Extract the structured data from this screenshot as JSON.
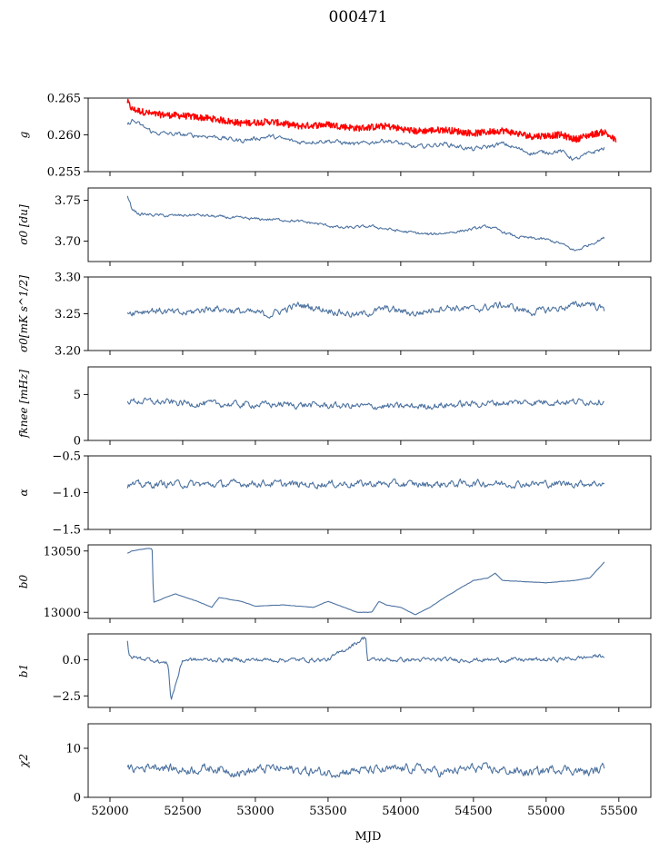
{
  "figure": {
    "title": "000471",
    "xlabel": "MJD",
    "x_ticks": [
      "52000",
      "52500",
      "53000",
      "53500",
      "54000",
      "54500",
      "55000",
      "55500"
    ]
  },
  "colors": {
    "series": "#4c72a0",
    "highlight": "#ff0000"
  },
  "chart_data": [
    {
      "type": "line",
      "id": "g",
      "ylabel": "g",
      "ylim": [
        0.255,
        0.265
      ],
      "xlim": [
        51850,
        55720
      ],
      "y_ticks": [
        "0.255",
        "0.260",
        "0.265"
      ],
      "series": [
        {
          "name": "g (red band)",
          "color": "#ff0000",
          "x": [
            52120,
            52150,
            52300,
            52500,
            52700,
            52900,
            53100,
            53300,
            53500,
            53700,
            53900,
            54100,
            54300,
            54500,
            54700,
            54900,
            55100,
            55200,
            55300,
            55400,
            55480
          ],
          "values": [
            0.2645,
            0.2635,
            0.2628,
            0.2626,
            0.2622,
            0.2616,
            0.2618,
            0.2612,
            0.2614,
            0.2609,
            0.2612,
            0.2605,
            0.2607,
            0.2602,
            0.2606,
            0.2598,
            0.26,
            0.2594,
            0.26,
            0.2604,
            0.2592
          ]
        },
        {
          "name": "g",
          "color": "#4c72a0",
          "x": [
            52120,
            52150,
            52300,
            52500,
            52700,
            52900,
            53100,
            53300,
            53500,
            53700,
            53900,
            54100,
            54300,
            54500,
            54700,
            54900,
            55100,
            55200,
            55300,
            55400
          ],
          "values": [
            0.2612,
            0.262,
            0.2603,
            0.26,
            0.2598,
            0.2592,
            0.2598,
            0.259,
            0.2592,
            0.2587,
            0.2593,
            0.2583,
            0.2588,
            0.258,
            0.2588,
            0.2575,
            0.2578,
            0.2566,
            0.2575,
            0.2582
          ]
        }
      ]
    },
    {
      "type": "line",
      "id": "sigma0_du",
      "ylabel": "σ0 [du]",
      "ylim": [
        3.675,
        3.765
      ],
      "xlim": [
        51850,
        55720
      ],
      "y_ticks": [
        "3.70",
        "3.75"
      ],
      "series": [
        {
          "name": "sigma0 [du]",
          "color": "#4c72a0",
          "x": [
            52120,
            52150,
            52200,
            52400,
            52600,
            52800,
            53000,
            53200,
            53400,
            53600,
            53800,
            54000,
            54200,
            54400,
            54600,
            54800,
            55000,
            55100,
            55200,
            55300,
            55400
          ],
          "values": [
            3.755,
            3.74,
            3.733,
            3.731,
            3.732,
            3.729,
            3.727,
            3.726,
            3.722,
            3.716,
            3.718,
            3.712,
            3.708,
            3.712,
            3.718,
            3.705,
            3.702,
            3.697,
            3.688,
            3.696,
            3.704
          ]
        }
      ]
    },
    {
      "type": "line",
      "id": "sigma0_mk",
      "ylabel": "σ0[mK s^1/2]",
      "ylim": [
        3.2,
        3.3
      ],
      "xlim": [
        51850,
        55720
      ],
      "y_ticks": [
        "3.20",
        "3.25",
        "3.30"
      ],
      "series": [
        {
          "name": "sigma0 [mK s^1/2]",
          "color": "#4c72a0",
          "x": [
            52120,
            52300,
            52500,
            52700,
            52900,
            53100,
            53300,
            53500,
            53700,
            53900,
            54100,
            54300,
            54500,
            54700,
            54900,
            55100,
            55300,
            55400
          ],
          "values": [
            3.252,
            3.255,
            3.25,
            3.258,
            3.253,
            3.249,
            3.262,
            3.255,
            3.248,
            3.257,
            3.25,
            3.259,
            3.256,
            3.262,
            3.252,
            3.258,
            3.265,
            3.255
          ]
        }
      ]
    },
    {
      "type": "line",
      "id": "fknee",
      "ylabel": "fknee [mHz]",
      "ylim": [
        0,
        8
      ],
      "xlim": [
        51850,
        55720
      ],
      "y_ticks": [
        "0",
        "5"
      ],
      "series": [
        {
          "name": "fknee [mHz]",
          "color": "#4c72a0",
          "x": [
            52120,
            52300,
            52600,
            52900,
            53200,
            53500,
            53800,
            54100,
            54400,
            54700,
            55000,
            55200,
            55400
          ],
          "values": [
            4.3,
            4.2,
            4.0,
            3.9,
            3.9,
            3.8,
            3.7,
            3.7,
            3.9,
            4.1,
            4.2,
            4.2,
            4.3
          ]
        }
      ]
    },
    {
      "type": "line",
      "id": "alpha",
      "ylabel": "α",
      "ylim": [
        -1.5,
        -0.5
      ],
      "xlim": [
        51850,
        55720
      ],
      "y_ticks": [
        "−1.5",
        "−1.0",
        "−0.5"
      ],
      "series": [
        {
          "name": "alpha",
          "color": "#4c72a0",
          "x": [
            52120,
            52400,
            52700,
            53000,
            53300,
            53600,
            53900,
            54200,
            54500,
            54800,
            55100,
            55400
          ],
          "values": [
            -0.9,
            -0.88,
            -0.89,
            -0.87,
            -0.89,
            -0.88,
            -0.88,
            -0.89,
            -0.87,
            -0.88,
            -0.88,
            -0.87
          ]
        }
      ]
    },
    {
      "type": "line",
      "id": "b0",
      "ylabel": "b0",
      "ylim": [
        12995,
        13055
      ],
      "xlim": [
        51850,
        55720
      ],
      "y_ticks": [
        "13000",
        "13050"
      ],
      "series": [
        {
          "name": "b0",
          "color": "#4c72a0",
          "x": [
            52120,
            52150,
            52250,
            52290,
            52300,
            52400,
            52450,
            52600,
            52700,
            52750,
            52900,
            53000,
            53200,
            53400,
            53500,
            53700,
            53800,
            53850,
            53900,
            54000,
            54100,
            54200,
            54300,
            54500,
            54600,
            54650,
            54700,
            55000,
            55200,
            55300,
            55400
          ],
          "values": [
            13048,
            13050,
            13052,
            13052,
            13008,
            13013,
            13015,
            13009,
            13004,
            13012,
            13009,
            13005,
            13006,
            13004,
            13009,
            13000,
            13000,
            13009,
            13006,
            13004,
            12998,
            13004,
            13012,
            13026,
            13028,
            13032,
            13026,
            13024,
            13026,
            13028,
            13041
          ]
        }
      ]
    },
    {
      "type": "line",
      "id": "b1",
      "ylabel": "b1",
      "ylim": [
        -3.3,
        1.8
      ],
      "xlim": [
        51850,
        55720
      ],
      "y_ticks": [
        "−2.5",
        "0.0"
      ],
      "series": [
        {
          "name": "b1",
          "color": "#4c72a0",
          "x": [
            52120,
            52130,
            52300,
            52400,
            52420,
            52500,
            53000,
            53500,
            53760,
            53770,
            54000,
            54500,
            55000,
            55200,
            55400
          ],
          "values": [
            1.2,
            0.2,
            0.0,
            -0.3,
            -2.8,
            0.0,
            0.0,
            0.0,
            1.6,
            0.0,
            0.0,
            0.0,
            0.0,
            0.1,
            0.3
          ]
        }
      ]
    },
    {
      "type": "line",
      "id": "chi2",
      "ylabel": "χ2",
      "ylim": [
        0,
        15
      ],
      "xlim": [
        51850,
        55720
      ],
      "y_ticks": [
        "0",
        "10"
      ],
      "series": [
        {
          "name": "chi^2",
          "color": "#4c72a0",
          "x": [
            52120,
            52300,
            52500,
            52700,
            52900,
            53100,
            53300,
            53500,
            53700,
            53900,
            54100,
            54300,
            54500,
            54700,
            54900,
            55100,
            55300,
            55400
          ],
          "values": [
            5.5,
            6.5,
            5.5,
            6.0,
            5.0,
            6.0,
            5.5,
            5.0,
            5.5,
            5.5,
            6.0,
            5.0,
            6.0,
            5.5,
            5.0,
            6.0,
            5.0,
            6.0
          ]
        }
      ]
    }
  ]
}
